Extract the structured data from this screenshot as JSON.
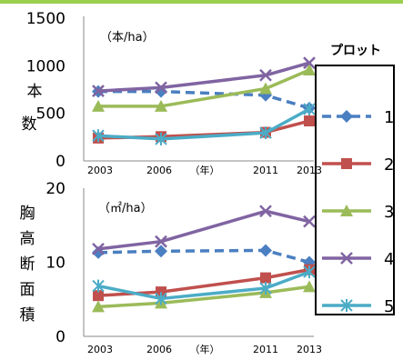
{
  "chart_data": [
    {
      "type": "line",
      "ylabel": "本数",
      "unit_label": "（本/ha）",
      "ylim": [
        0,
        1500
      ],
      "y_ticks": [
        "0",
        "500",
        "1000",
        "1500"
      ],
      "x_ticks": [
        "2003",
        "2006",
        "（年）",
        "2011",
        "2013"
      ],
      "x_values": [
        2003,
        2006,
        2011,
        2013
      ],
      "series": [
        {
          "name": "1",
          "color": "#4a7fc1",
          "dashed": true,
          "marker": "diamond",
          "values": [
            730,
            730,
            690,
            555
          ]
        },
        {
          "name": "2",
          "color": "#c0504d",
          "dashed": false,
          "marker": "square",
          "values": [
            240,
            255,
            300,
            420
          ]
        },
        {
          "name": "3",
          "color": "#9bbb59",
          "dashed": false,
          "marker": "triangle",
          "values": [
            575,
            575,
            760,
            955
          ]
        },
        {
          "name": "4",
          "color": "#8064a2",
          "dashed": false,
          "marker": "x",
          "values": [
            735,
            770,
            900,
            1030
          ]
        },
        {
          "name": "5",
          "color": "#4bacc6",
          "dashed": false,
          "marker": "star",
          "values": [
            265,
            230,
            295,
            545
          ]
        }
      ]
    },
    {
      "type": "line",
      "ylabel": "胸高断面積",
      "unit_label": "（㎡/ha）",
      "ylim": [
        0,
        20
      ],
      "y_ticks": [
        "0",
        "10",
        "20"
      ],
      "x_ticks": [
        "2003",
        "2006",
        "（年）",
        "2011",
        "2013"
      ],
      "x_values": [
        2003,
        2006,
        2011,
        2013
      ],
      "series": [
        {
          "name": "1",
          "color": "#4a7fc1",
          "dashed": true,
          "marker": "diamond",
          "values": [
            11.3,
            11.5,
            11.6,
            10.0
          ]
        },
        {
          "name": "2",
          "color": "#c0504d",
          "dashed": false,
          "marker": "square",
          "values": [
            5.5,
            6.0,
            7.9,
            9.0
          ]
        },
        {
          "name": "3",
          "color": "#9bbb59",
          "dashed": false,
          "marker": "triangle",
          "values": [
            4.0,
            4.5,
            5.9,
            6.7
          ]
        },
        {
          "name": "4",
          "color": "#8064a2",
          "dashed": false,
          "marker": "x",
          "values": [
            11.8,
            12.8,
            16.9,
            15.5
          ]
        },
        {
          "name": "5",
          "color": "#4bacc6",
          "dashed": false,
          "marker": "star",
          "values": [
            6.8,
            5.1,
            6.5,
            8.7
          ]
        }
      ]
    }
  ],
  "legend": {
    "title": "プロット",
    "items": [
      "1",
      "2",
      "3",
      "4",
      "5"
    ]
  }
}
